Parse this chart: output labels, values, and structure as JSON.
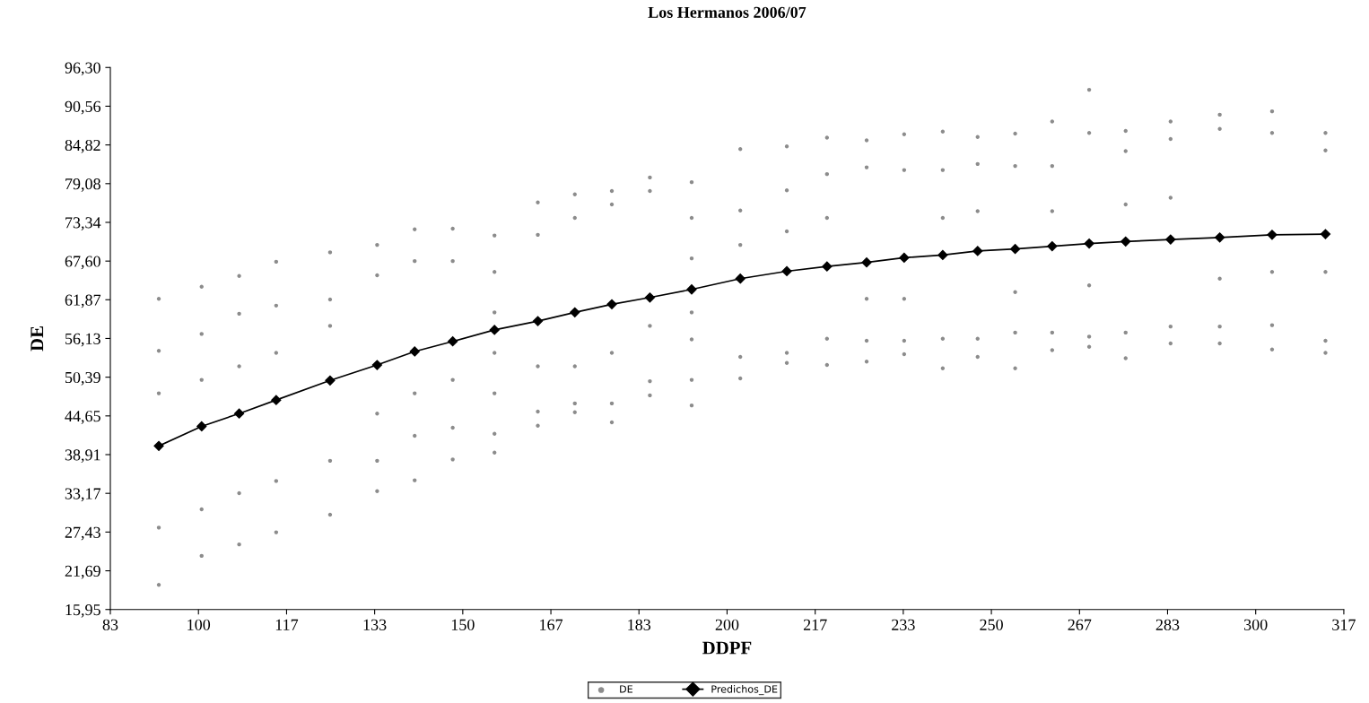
{
  "chart_data": {
    "type": "scatter",
    "title": "Los Hermanos 2006/07",
    "xlabel": "DDPF",
    "ylabel": "DE",
    "xlim": [
      83.33,
      316.67
    ],
    "xticks": [
      {
        "value": 83.33,
        "label": "83"
      },
      100,
      {
        "value": 116.67,
        "label": "117"
      },
      {
        "value": 133.33,
        "label": "133"
      },
      150,
      {
        "value": 166.67,
        "label": "167"
      },
      {
        "value": 183.33,
        "label": "183"
      },
      200,
      {
        "value": 216.67,
        "label": "217"
      },
      {
        "value": 233.33,
        "label": "233"
      },
      250,
      {
        "value": 266.67,
        "label": "267"
      },
      {
        "value": 283.33,
        "label": "283"
      },
      300,
      {
        "value": 316.67,
        "label": "317"
      }
    ],
    "ylim": [
      15.95,
      96.3
    ],
    "yticks": [
      {
        "value": 15.95,
        "label": "15,95"
      },
      {
        "value": 21.69,
        "label": "21,69"
      },
      {
        "value": 27.43,
        "label": "27,43"
      },
      {
        "value": 33.17,
        "label": "33,17"
      },
      {
        "value": 38.91,
        "label": "38,91"
      },
      {
        "value": 44.65,
        "label": "44,65"
      },
      {
        "value": 50.39,
        "label": "50,39"
      },
      {
        "value": 56.13,
        "label": "56,13"
      },
      {
        "value": 61.87,
        "label": "61,87"
      },
      {
        "value": 67.6,
        "label": "67,60"
      },
      {
        "value": 73.34,
        "label": "73,34"
      },
      {
        "value": 79.08,
        "label": "79,08"
      },
      {
        "value": 84.82,
        "label": "84,82"
      },
      {
        "value": 90.56,
        "label": "90,56"
      },
      {
        "value": 96.3,
        "label": "96,30"
      }
    ],
    "grid": false,
    "legend": "bottom",
    "series": [
      {
        "name": "DE",
        "marker": "circle",
        "color": "#8c8c8c",
        "x": [
          92.5,
          92.5,
          92.5,
          92.5,
          92.5,
          100.6,
          100.6,
          100.6,
          100.6,
          100.6,
          107.7,
          107.7,
          107.7,
          107.7,
          107.7,
          114.7,
          114.7,
          114.7,
          114.7,
          114.7,
          124.9,
          124.9,
          124.9,
          124.9,
          124.9,
          133.8,
          133.8,
          133.8,
          133.8,
          133.8,
          140.9,
          140.9,
          140.9,
          140.9,
          140.9,
          148.1,
          148.1,
          148.1,
          148.1,
          148.1,
          156,
          156,
          156,
          156,
          156,
          156,
          156,
          164.2,
          164.2,
          164.2,
          164.2,
          164.2,
          171.2,
          171.2,
          171.2,
          171.2,
          171.2,
          178.2,
          178.2,
          178.2,
          178.2,
          178.2,
          185.4,
          185.4,
          185.4,
          185.4,
          185.4,
          193.3,
          193.3,
          193.3,
          193.3,
          193.3,
          193.3,
          193.3,
          202.5,
          202.5,
          202.5,
          202.5,
          202.5,
          211.3,
          211.3,
          211.3,
          211.3,
          211.3,
          218.9,
          218.9,
          218.9,
          218.9,
          218.9,
          226.4,
          226.4,
          226.4,
          226.4,
          226.4,
          233.5,
          233.5,
          233.5,
          233.5,
          233.5,
          240.8,
          240.8,
          240.8,
          240.8,
          240.8,
          247.4,
          247.4,
          247.4,
          247.4,
          247.4,
          254.5,
          254.5,
          254.5,
          254.5,
          254.5,
          261.5,
          261.5,
          261.5,
          261.5,
          261.5,
          268.5,
          268.5,
          268.5,
          268.5,
          268.5,
          275.4,
          275.4,
          275.4,
          275.4,
          275.4,
          283.9,
          283.9,
          283.9,
          283.9,
          283.9,
          293.2,
          293.2,
          293.2,
          293.2,
          293.2,
          303.1,
          303.1,
          303.1,
          303.1,
          303.1,
          313.2,
          313.2,
          313.2,
          313.2,
          313.2
        ],
        "values": [
          62.0,
          54.3,
          48,
          28.1,
          19.6,
          63.8,
          56.8,
          50,
          30.8,
          23.9,
          65.4,
          59.8,
          52,
          33.2,
          25.6,
          67.5,
          61.0,
          54,
          35.0,
          27.4,
          68.9,
          61.9,
          58,
          38.0,
          30.0,
          70.0,
          65.5,
          45,
          38.0,
          33.5,
          72.3,
          67.6,
          48,
          41.7,
          35.1,
          72.4,
          67.6,
          50,
          42.9,
          38.2,
          71.4,
          66,
          60,
          54,
          48,
          42.0,
          39.2,
          76.3,
          71.5,
          52,
          45.3,
          43.2,
          77.5,
          74,
          52,
          46.5,
          45.2,
          78.0,
          76,
          54,
          46.5,
          43.7,
          80.0,
          78,
          58,
          49.8,
          47.7,
          79.3,
          74,
          68,
          60,
          56,
          50,
          46.2,
          84.2,
          75.1,
          70,
          53.4,
          50.2,
          84.6,
          78.1,
          72,
          54.0,
          52.5,
          85.9,
          80.5,
          74,
          56.1,
          52.2,
          85.5,
          81.5,
          62,
          55.8,
          52.7,
          86.4,
          81.1,
          62,
          55.8,
          53.8,
          86.8,
          81.1,
          74,
          56.1,
          51.7,
          86.0,
          82.0,
          75,
          56.1,
          53.4,
          86.5,
          81.7,
          63,
          57.0,
          51.7,
          88.3,
          81.7,
          75,
          57.0,
          54.4,
          93.0,
          86.6,
          64,
          56.4,
          54.9,
          86.9,
          83.9,
          76,
          57.0,
          53.2,
          88.3,
          85.7,
          77,
          57.9,
          55.4,
          89.3,
          87.2,
          65,
          57.9,
          55.4,
          89.8,
          86.6,
          66,
          58.1,
          54.5,
          86.6,
          84,
          66,
          55.8,
          54.0
        ]
      },
      {
        "name": "Predichos_DE",
        "type": "line",
        "marker": "diamond",
        "line_style": "solid",
        "color": "#000000",
        "x": [
          92.5,
          100.6,
          107.7,
          114.7,
          124.9,
          133.8,
          140.9,
          148.1,
          156,
          164.2,
          171.2,
          178.2,
          185.4,
          193.3,
          202.5,
          211.3,
          218.9,
          226.4,
          233.5,
          240.8,
          247.4,
          254.5,
          261.5,
          268.5,
          275.4,
          283.9,
          293.2,
          303.1,
          313.2
        ],
        "values": [
          40.2,
          43.1,
          45.0,
          47.0,
          49.9,
          52.2,
          54.2,
          55.7,
          57.4,
          58.7,
          60.0,
          61.2,
          62.2,
          63.4,
          65.0,
          66.1,
          66.8,
          67.4,
          68.1,
          68.5,
          69.1,
          69.4,
          69.8,
          70.2,
          70.5,
          70.8,
          71.1,
          71.5,
          71.6
        ]
      }
    ]
  }
}
